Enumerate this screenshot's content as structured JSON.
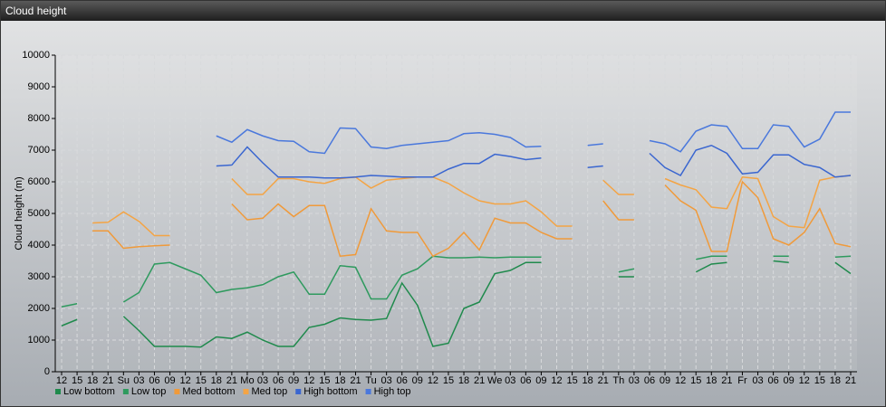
{
  "title": "Cloud height",
  "chart_data": {
    "type": "line",
    "ylabel": "Cloud height (m)",
    "categories": [
      "12",
      "15",
      "18",
      "21",
      "Su",
      "03",
      "06",
      "09",
      "12",
      "15",
      "18",
      "21",
      "Mo",
      "03",
      "06",
      "09",
      "12",
      "15",
      "18",
      "21",
      "Tu",
      "03",
      "06",
      "09",
      "12",
      "15",
      "18",
      "21",
      "We",
      "03",
      "06",
      "09",
      "12",
      "15",
      "18",
      "21",
      "Th",
      "03",
      "06",
      "09",
      "12",
      "15",
      "18",
      "21",
      "Fr",
      "03",
      "06",
      "09",
      "12",
      "15",
      "18",
      "21"
    ],
    "ylim": [
      0,
      10000
    ],
    "yticks": [
      0,
      1000,
      2000,
      3000,
      4000,
      5000,
      6000,
      7000,
      8000,
      9000,
      10000
    ],
    "grid": true,
    "series": [
      {
        "name": "Low bottom",
        "color": "#1f8a4c",
        "values": [
          1450,
          1650,
          null,
          null,
          1750,
          1300,
          800,
          800,
          800,
          780,
          1100,
          1050,
          1250,
          1000,
          800,
          800,
          1400,
          1500,
          1700,
          1650,
          1630,
          1680,
          2800,
          2100,
          800,
          900,
          2000,
          2200,
          3100,
          3200,
          3450,
          3450,
          null,
          null,
          null,
          null,
          3000,
          3000,
          null,
          null,
          null,
          3150,
          3400,
          3450,
          null,
          null,
          3500,
          3450,
          null,
          null,
          3450,
          3100
        ]
      },
      {
        "name": "Low top",
        "color": "#2e9a5e",
        "values": [
          2050,
          2150,
          null,
          null,
          2200,
          2500,
          3400,
          3450,
          3250,
          3050,
          2500,
          2600,
          2650,
          2750,
          3000,
          3150,
          2450,
          2450,
          3350,
          3300,
          2300,
          2300,
          3050,
          3250,
          3650,
          3600,
          3600,
          3620,
          3600,
          3620,
          3620,
          3620,
          null,
          null,
          null,
          null,
          3150,
          3250,
          null,
          null,
          null,
          3550,
          3650,
          3650,
          null,
          null,
          3650,
          3650,
          null,
          null,
          3620,
          3650
        ]
      },
      {
        "name": "Med bottom",
        "color": "#f09a3a",
        "values": [
          null,
          null,
          4450,
          4450,
          3900,
          3950,
          3980,
          4000,
          null,
          null,
          null,
          5300,
          4800,
          4850,
          5300,
          4900,
          5250,
          5250,
          3650,
          3700,
          5150,
          4450,
          4400,
          4400,
          3650,
          3900,
          4400,
          3850,
          4850,
          4700,
          4700,
          4400,
          4200,
          4200,
          null,
          5400,
          4800,
          4800,
          null,
          5900,
          5400,
          5100,
          3800,
          3800,
          6000,
          5500,
          4200,
          4000,
          4400,
          5150,
          4050,
          3950
        ]
      },
      {
        "name": "Med top",
        "color": "#f4a444",
        "values": [
          null,
          null,
          4700,
          4720,
          5050,
          4750,
          4300,
          4300,
          null,
          null,
          null,
          6100,
          5600,
          5600,
          6100,
          6100,
          6000,
          5950,
          6100,
          6150,
          5800,
          6050,
          6100,
          6150,
          6150,
          5950,
          5650,
          5400,
          5300,
          5300,
          5400,
          5050,
          4600,
          4600,
          null,
          6050,
          5600,
          5600,
          null,
          6100,
          5900,
          5750,
          5200,
          5150,
          6150,
          6100,
          4900,
          4600,
          4550,
          6050,
          6150,
          6200
        ]
      },
      {
        "name": "High bottom",
        "color": "#3a66d0",
        "values": [
          null,
          null,
          null,
          null,
          null,
          null,
          null,
          null,
          null,
          null,
          6500,
          6530,
          7100,
          6600,
          6150,
          6150,
          6150,
          6120,
          6120,
          6150,
          6200,
          6180,
          6150,
          6150,
          6150,
          6400,
          6580,
          6580,
          6870,
          6800,
          6700,
          6750,
          null,
          null,
          6450,
          6500,
          null,
          null,
          6900,
          6450,
          6200,
          7000,
          7150,
          6900,
          6250,
          6300,
          6850,
          6850,
          6550,
          6450,
          6150,
          6200
        ]
      },
      {
        "name": "High top",
        "color": "#4a78dc",
        "values": [
          null,
          null,
          null,
          null,
          null,
          null,
          null,
          null,
          null,
          null,
          7450,
          7250,
          7650,
          7450,
          7300,
          7280,
          6950,
          6900,
          7700,
          7680,
          7100,
          7050,
          7150,
          7200,
          7250,
          7300,
          7520,
          7550,
          7500,
          7400,
          7100,
          7120,
          null,
          null,
          7150,
          7200,
          null,
          null,
          7300,
          7200,
          6950,
          7600,
          7800,
          7750,
          7050,
          7050,
          7800,
          7750,
          7100,
          7350,
          8200,
          8200
        ]
      }
    ]
  }
}
